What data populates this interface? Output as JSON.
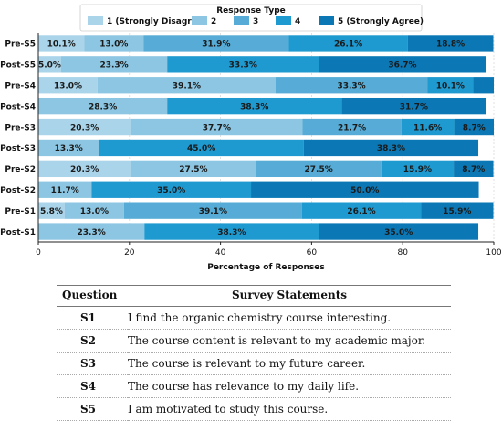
{
  "chart_data": {
    "type": "bar",
    "orientation": "horizontal",
    "stacked": true,
    "title": "",
    "xlabel": "Percentage of Responses",
    "ylabel": "",
    "xlim": [
      0,
      100
    ],
    "xticks": [
      "0",
      "20",
      "40",
      "60",
      "80",
      "100"
    ],
    "legend": {
      "title": "Response Type",
      "placement": "top"
    },
    "categories": [
      "Pre-S5",
      "Post-S5",
      "Pre-S4",
      "Post-S4",
      "Pre-S3",
      "Post-S3",
      "Pre-S2",
      "Post-S2",
      "Pre-S1",
      "Post-S1"
    ],
    "series": [
      {
        "name": "1 (Strongly Disagree)",
        "color": "#a9d4ea",
        "values": [
          10.1,
          5.0,
          13.0,
          0,
          20.3,
          0,
          20.3,
          0,
          5.8,
          0
        ],
        "labels": [
          "10.1%",
          "5.0%",
          "13.0%",
          "",
          "20.3%",
          "",
          "20.3%",
          "",
          "5.8%",
          ""
        ]
      },
      {
        "name": "2",
        "color": "#8cc6e2",
        "values": [
          13.0,
          23.3,
          39.1,
          28.3,
          37.7,
          13.3,
          27.5,
          11.7,
          13.0,
          23.3
        ],
        "labels": [
          "13.0%",
          "23.3%",
          "39.1%",
          "28.3%",
          "37.7%",
          "13.3%",
          "27.5%",
          "11.7%",
          "13.0%",
          "23.3%"
        ]
      },
      {
        "name": "3",
        "color": "#56acd6",
        "values": [
          31.9,
          0,
          33.3,
          0,
          21.7,
          0,
          27.5,
          0,
          39.1,
          0
        ],
        "labels": [
          "31.9%",
          "",
          "33.3%",
          "",
          "21.7%",
          "",
          "27.5%",
          "",
          "39.1%",
          ""
        ]
      },
      {
        "name": "4",
        "color": "#1f9ad0",
        "values": [
          26.1,
          33.3,
          10.1,
          38.3,
          11.6,
          45.0,
          15.9,
          35.0,
          26.1,
          38.3
        ],
        "labels": [
          "26.1%",
          "33.3%",
          "10.1%",
          "38.3%",
          "11.6%",
          "45.0%",
          "15.9%",
          "35.0%",
          "26.1%",
          "38.3%"
        ]
      },
      {
        "name": "5 (Strongly Agree)",
        "color": "#0b78b5",
        "values": [
          18.8,
          36.7,
          4.5,
          31.7,
          8.7,
          38.3,
          8.7,
          50.0,
          15.9,
          35.0
        ],
        "labels": [
          "18.8%",
          "36.7%",
          "",
          "31.7%",
          "8.7%",
          "38.3%",
          "8.7%",
          "50.0%",
          "15.9%",
          "35.0%"
        ]
      }
    ]
  },
  "table": {
    "headers": {
      "question": "Question",
      "statement": "Survey Statements"
    },
    "rows": [
      {
        "q": "S1",
        "text": "I find the organic chemistry course interesting."
      },
      {
        "q": "S2",
        "text": "The course content is relevant to my academic major."
      },
      {
        "q": "S3",
        "text": "The course is relevant to my future career."
      },
      {
        "q": "S4",
        "text": "The course has relevance to my daily life."
      },
      {
        "q": "S5",
        "text": "I am motivated to study this course."
      }
    ]
  }
}
